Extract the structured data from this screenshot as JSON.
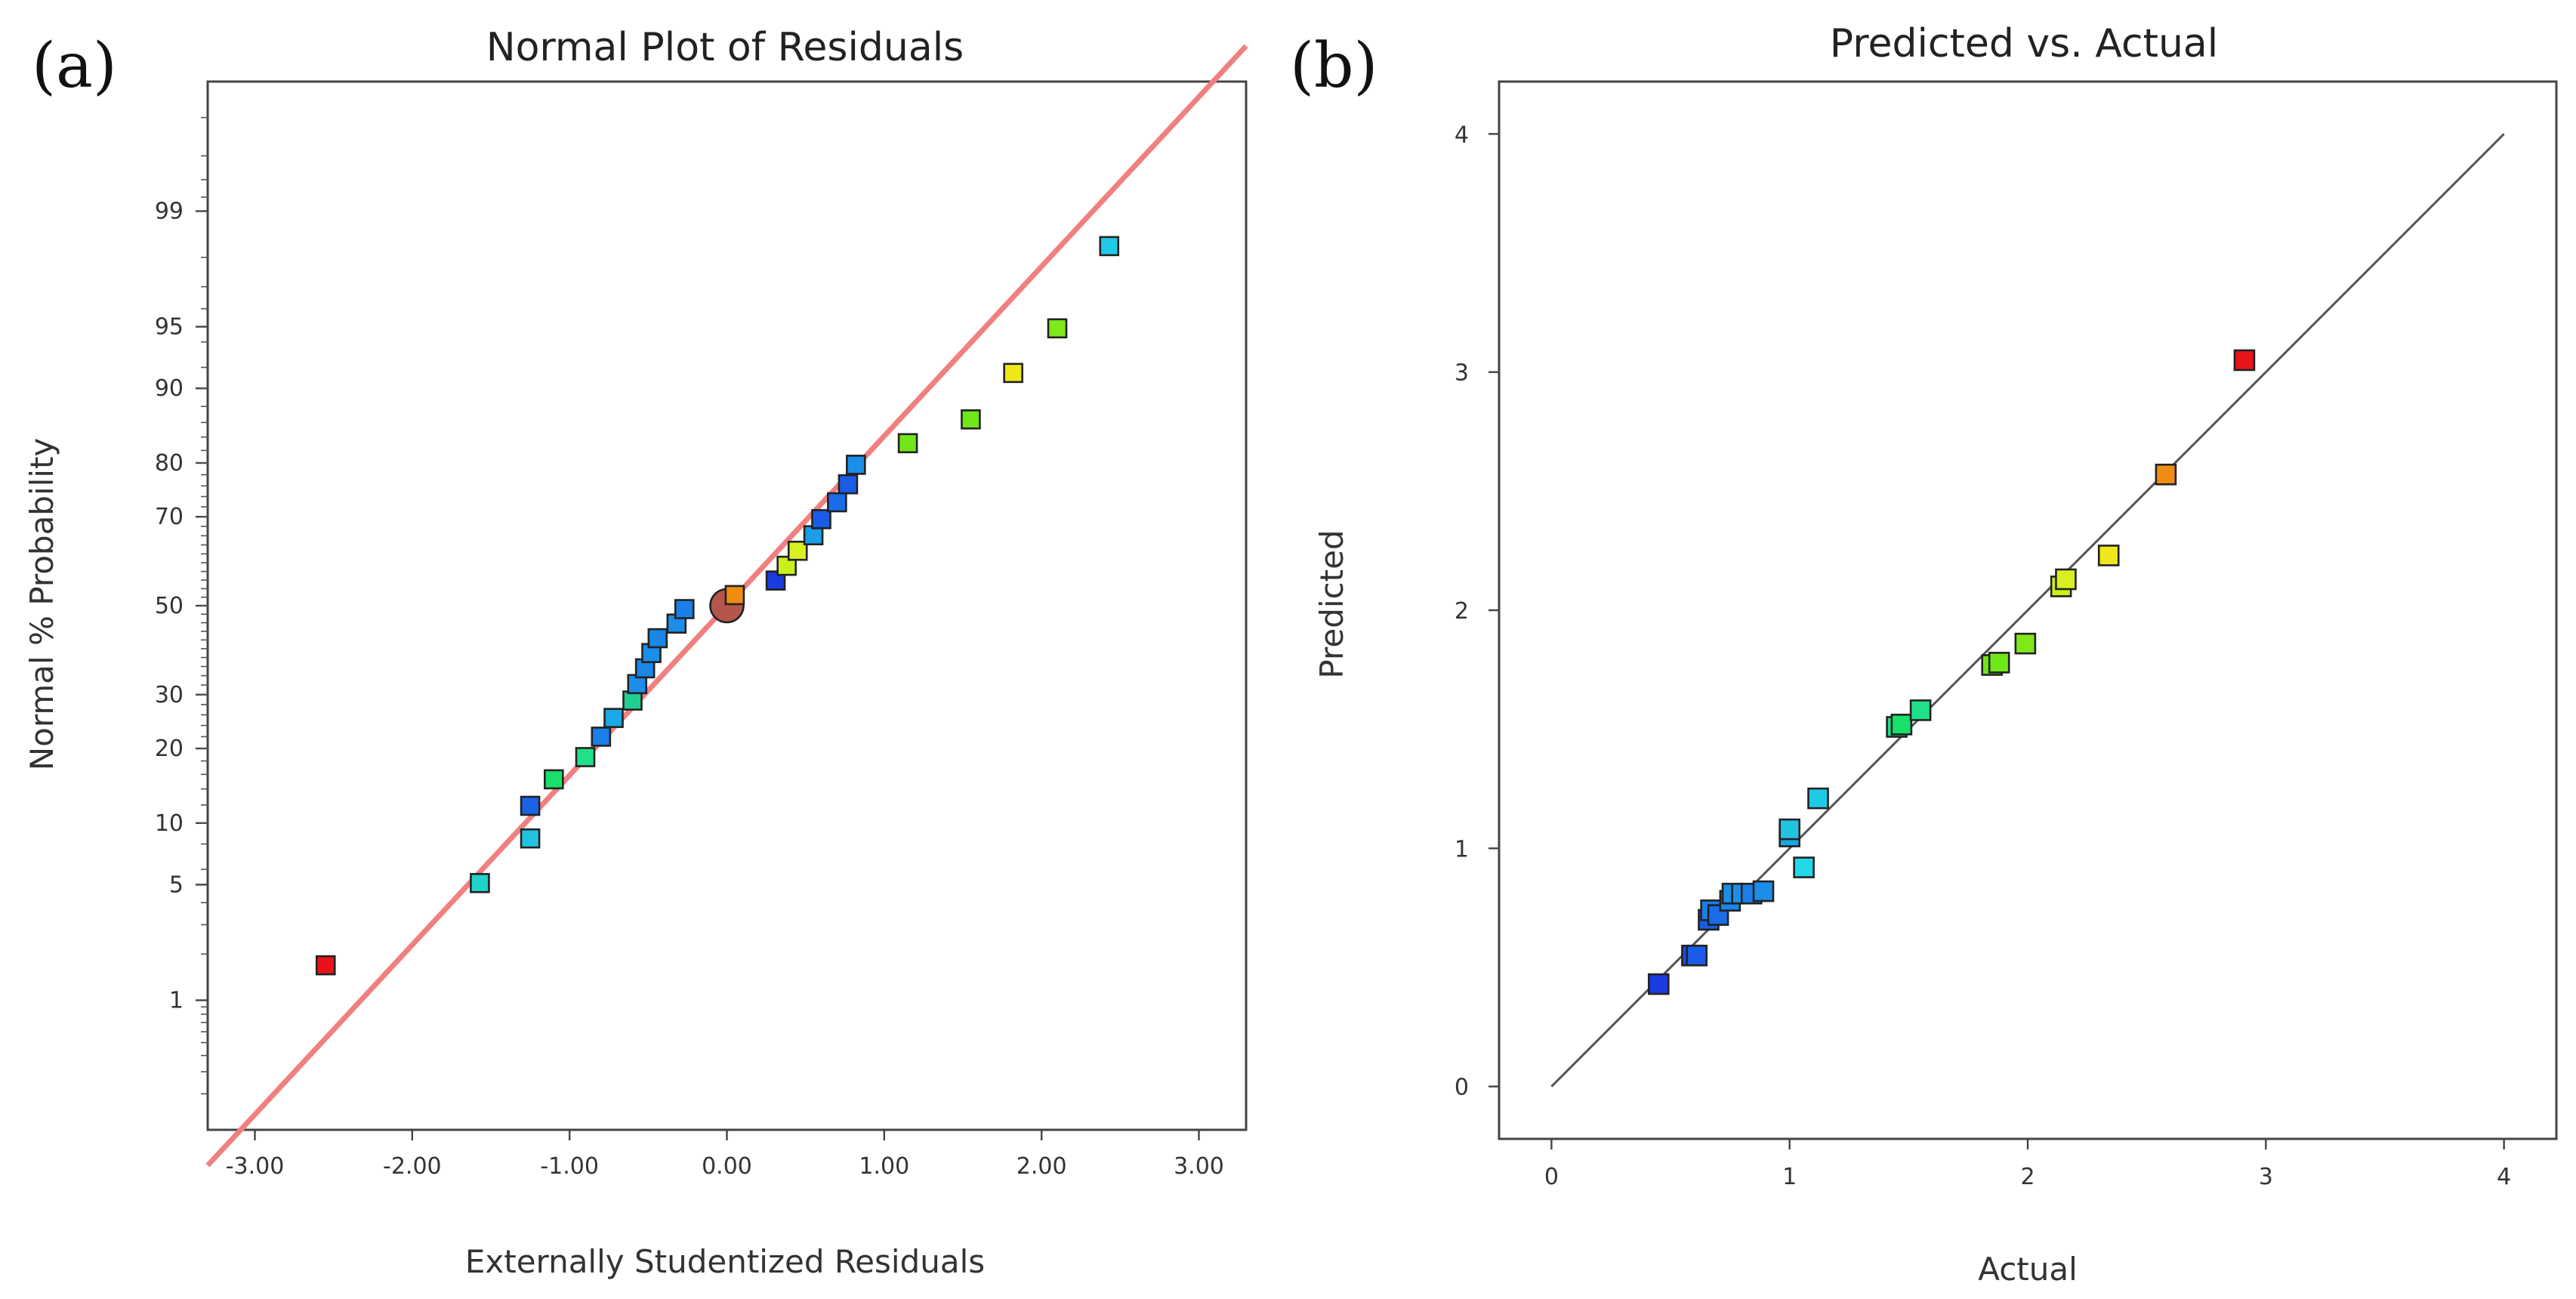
{
  "figure": {
    "panel_a_label": "(a)",
    "panel_b_label": "(b)"
  },
  "chart_data": [
    {
      "type": "scatter",
      "title": "Normal Plot of Residuals",
      "xlabel": "Externally Studentized Residuals",
      "ylabel": "Normal % Probability",
      "xlim": [
        -3.3,
        3.3
      ],
      "ylim": [
        0.1,
        99.9
      ],
      "y_scale": "normal-probability",
      "grid": false,
      "x_ticks": [
        -3,
        -2,
        -1,
        0,
        1,
        2,
        3
      ],
      "x_tick_labels": [
        "-3.00",
        "-2.00",
        "-1.00",
        "0.00",
        "1.00",
        "2.00",
        "3.00"
      ],
      "y_ticks": [
        1,
        5,
        10,
        20,
        30,
        50,
        70,
        80,
        90,
        95,
        99
      ],
      "y_tick_labels": [
        "1",
        "5",
        "10",
        "20",
        "30",
        "50",
        "70",
        "80",
        "90",
        "95",
        "99"
      ],
      "reference_line": {
        "slope": 1.0,
        "intercept": 0.0,
        "color": "#f08080"
      },
      "center_marker": {
        "x": 0.0,
        "y": 50,
        "color": "#b5564a"
      },
      "points": [
        {
          "x": -2.55,
          "y": 1.7,
          "color": "#e8121a"
        },
        {
          "x": -1.57,
          "y": 5.1,
          "color": "#1fd3c9"
        },
        {
          "x": -1.25,
          "y": 8.5,
          "color": "#21c3e0"
        },
        {
          "x": -1.25,
          "y": 11.9,
          "color": "#1a63e6"
        },
        {
          "x": -1.1,
          "y": 15.3,
          "color": "#19e06a"
        },
        {
          "x": -0.9,
          "y": 18.6,
          "color": "#22e08a"
        },
        {
          "x": -0.8,
          "y": 22.0,
          "color": "#1a7fe8"
        },
        {
          "x": -0.72,
          "y": 25.4,
          "color": "#1aa8e6"
        },
        {
          "x": -0.6,
          "y": 28.8,
          "color": "#1fcf8f"
        },
        {
          "x": -0.57,
          "y": 32.2,
          "color": "#1a8ee8"
        },
        {
          "x": -0.52,
          "y": 35.6,
          "color": "#1a86e6"
        },
        {
          "x": -0.48,
          "y": 39.0,
          "color": "#1a8ee8"
        },
        {
          "x": -0.44,
          "y": 42.4,
          "color": "#1a86e6"
        },
        {
          "x": -0.32,
          "y": 45.8,
          "color": "#1a8ee8"
        },
        {
          "x": -0.27,
          "y": 49.2,
          "color": "#1a7fe8"
        },
        {
          "x": 0.05,
          "y": 52.5,
          "color": "#f08c12"
        },
        {
          "x": 0.31,
          "y": 55.9,
          "color": "#1a3be0"
        },
        {
          "x": 0.38,
          "y": 59.3,
          "color": "#c8f01a"
        },
        {
          "x": 0.45,
          "y": 62.7,
          "color": "#d8f020"
        },
        {
          "x": 0.55,
          "y": 66.1,
          "color": "#1a9ee8"
        },
        {
          "x": 0.6,
          "y": 69.5,
          "color": "#1a5ce8"
        },
        {
          "x": 0.7,
          "y": 72.9,
          "color": "#1a6ce8"
        },
        {
          "x": 0.77,
          "y": 76.3,
          "color": "#1a5ce8"
        },
        {
          "x": 0.82,
          "y": 79.7,
          "color": "#1a8ee8"
        },
        {
          "x": 1.15,
          "y": 83.1,
          "color": "#6fe81a"
        },
        {
          "x": 1.55,
          "y": 86.4,
          "color": "#6fe81a"
        },
        {
          "x": 1.82,
          "y": 91.5,
          "color": "#eee81a"
        },
        {
          "x": 2.1,
          "y": 94.9,
          "color": "#7fe81a"
        },
        {
          "x": 2.43,
          "y": 98.3,
          "color": "#21c9e8"
        }
      ]
    },
    {
      "type": "scatter",
      "title": "Predicted vs. Actual",
      "xlabel": "Actual",
      "ylabel": "Predicted",
      "xlim": [
        -0.22,
        4.22
      ],
      "ylim": [
        -0.22,
        4.22
      ],
      "grid": false,
      "x_ticks": [
        0,
        1,
        2,
        3,
        4
      ],
      "x_tick_labels": [
        "0",
        "1",
        "2",
        "3",
        "4"
      ],
      "y_ticks": [
        0,
        1,
        2,
        3,
        4
      ],
      "y_tick_labels": [
        "0",
        "1",
        "2",
        "3",
        "4"
      ],
      "reference_line": {
        "from": [
          0,
          0
        ],
        "to": [
          4,
          4
        ],
        "color": "#555555"
      },
      "points": [
        {
          "x": 0.45,
          "y": 0.43,
          "color": "#1a3be0"
        },
        {
          "x": 0.59,
          "y": 0.55,
          "color": "#1a4fe6"
        },
        {
          "x": 0.61,
          "y": 0.55,
          "color": "#1a5ce8"
        },
        {
          "x": 0.66,
          "y": 0.7,
          "color": "#1a5ce8"
        },
        {
          "x": 0.67,
          "y": 0.74,
          "color": "#1a7fe8"
        },
        {
          "x": 0.7,
          "y": 0.72,
          "color": "#1a6ce8"
        },
        {
          "x": 0.75,
          "y": 0.78,
          "color": "#1a86e6"
        },
        {
          "x": 0.76,
          "y": 0.81,
          "color": "#1a8ee8"
        },
        {
          "x": 0.8,
          "y": 0.81,
          "color": "#1a8ee8"
        },
        {
          "x": 0.84,
          "y": 0.81,
          "color": "#1a7fe8"
        },
        {
          "x": 0.89,
          "y": 0.82,
          "color": "#1a8ee8"
        },
        {
          "x": 1.0,
          "y": 1.05,
          "color": "#1aa8e6"
        },
        {
          "x": 1.0,
          "y": 1.08,
          "color": "#21c3e0"
        },
        {
          "x": 1.06,
          "y": 0.92,
          "color": "#21d8e8"
        },
        {
          "x": 1.12,
          "y": 1.21,
          "color": "#21c9e8"
        },
        {
          "x": 1.45,
          "y": 1.51,
          "color": "#22e08a"
        },
        {
          "x": 1.47,
          "y": 1.52,
          "color": "#19e06a"
        },
        {
          "x": 1.55,
          "y": 1.58,
          "color": "#22e08a"
        },
        {
          "x": 1.85,
          "y": 1.77,
          "color": "#6fe81a"
        },
        {
          "x": 1.88,
          "y": 1.78,
          "color": "#6fe81a"
        },
        {
          "x": 1.99,
          "y": 1.86,
          "color": "#7fe81a"
        },
        {
          "x": 2.14,
          "y": 2.1,
          "color": "#c8f01a"
        },
        {
          "x": 2.16,
          "y": 2.13,
          "color": "#d8f020"
        },
        {
          "x": 2.34,
          "y": 2.23,
          "color": "#eee81a"
        },
        {
          "x": 2.58,
          "y": 2.57,
          "color": "#f08c12"
        },
        {
          "x": 2.91,
          "y": 3.05,
          "color": "#e8121a"
        }
      ]
    }
  ]
}
